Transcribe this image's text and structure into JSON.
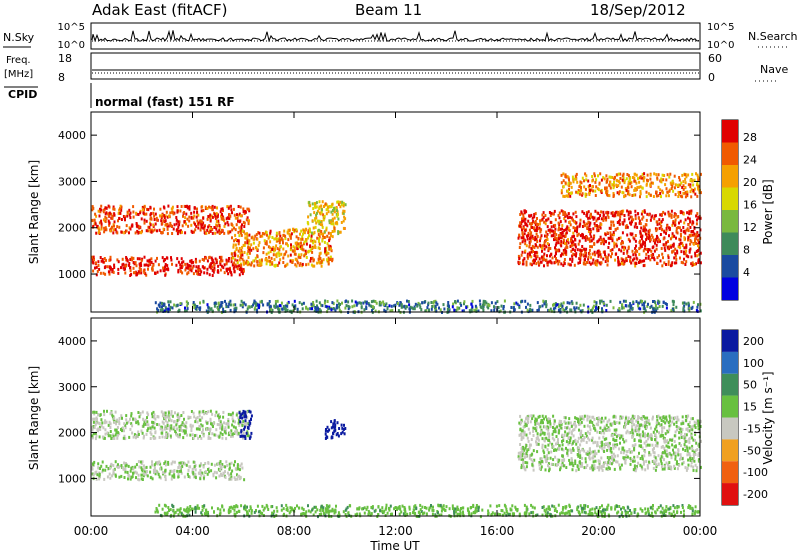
{
  "header": {
    "station": "Adak East (fitACF)",
    "beam": "Beam 11",
    "date": "18/Sep/2012"
  },
  "aux": {
    "nsky_label": "N.Sky",
    "nsky_ticks": [
      "10^5",
      "10^0"
    ],
    "nsearch_label": "N.Search",
    "nsearch_ticks": [
      "10^5",
      "10^0"
    ],
    "freq_label": "Freq.",
    "freq_unit": "[MHz]",
    "freq_ticks": [
      "18",
      "8"
    ],
    "nave_label": "Nave",
    "nave_ticks": [
      "60",
      "0"
    ],
    "cpid_label": "CPID",
    "cpid_text": "normal (fast) 151 RF"
  },
  "panels": {
    "power": {
      "ylabel": "Slant Range [km]",
      "yticks": [
        "4000",
        "3000",
        "2000",
        "1000"
      ],
      "colorbar_label": "Power [dB]",
      "colorbar_ticks": [
        "28",
        "24",
        "20",
        "16",
        "12",
        "8",
        "4"
      ],
      "colors": [
        "#e00000",
        "#f05a00",
        "#f5a000",
        "#d8d800",
        "#7ab840",
        "#3e8a5a",
        "#1a4aa0",
        "#0000e0"
      ]
    },
    "velocity": {
      "ylabel": "Slant Range [km]",
      "yticks": [
        "4000",
        "3000",
        "2000",
        "1000"
      ],
      "colorbar_label": "Velocity [m s⁻¹]",
      "colorbar_ticks": [
        "200",
        "100",
        "50",
        "15",
        "-15",
        "-50",
        "-100",
        "-200"
      ],
      "colors": [
        "#0a1aa0",
        "#2a6ec0",
        "#3f8e5a",
        "#68c040",
        "#c8c8c0",
        "#f0a020",
        "#f06010",
        "#e01010"
      ]
    }
  },
  "xaxis": {
    "label": "Time UT",
    "ticks": [
      "00:00",
      "04:00",
      "08:00",
      "12:00",
      "16:00",
      "20:00",
      "00:00"
    ]
  },
  "chart_data": [
    {
      "type": "heatmap",
      "name": "Power",
      "x_unit": "hours UT",
      "y_unit": "km",
      "xlim": [
        0,
        24
      ],
      "ylim": [
        180,
        4500
      ],
      "clim": [
        0,
        30
      ],
      "regions": [
        {
          "t0": 0.0,
          "t1": 6.0,
          "r0": 1000,
          "r1": 1400,
          "value": 28
        },
        {
          "t0": 0.0,
          "t1": 6.2,
          "r0": 1900,
          "r1": 2500,
          "value": 26
        },
        {
          "t0": 5.5,
          "t1": 9.5,
          "r0": 1200,
          "r1": 2000,
          "value": 22
        },
        {
          "t0": 8.5,
          "t1": 10.0,
          "r0": 1900,
          "r1": 2600,
          "value": 18
        },
        {
          "t0": 16.8,
          "t1": 24.0,
          "r0": 1200,
          "r1": 2400,
          "value": 27
        },
        {
          "t0": 18.5,
          "t1": 24.0,
          "r0": 2700,
          "r1": 3200,
          "value": 22
        },
        {
          "t0": 2.5,
          "t1": 24.0,
          "r0": 200,
          "r1": 450,
          "value": 8
        }
      ]
    },
    {
      "type": "heatmap",
      "name": "Velocity",
      "x_unit": "hours UT",
      "y_unit": "km",
      "xlim": [
        0,
        24
      ],
      "ylim": [
        180,
        4500
      ],
      "clim": [
        -200,
        200
      ],
      "regions": [
        {
          "t0": 0.0,
          "t1": 6.0,
          "r0": 1000,
          "r1": 1400,
          "value": 0
        },
        {
          "t0": 0.0,
          "t1": 6.2,
          "r0": 1900,
          "r1": 2500,
          "value": -5
        },
        {
          "t0": 5.8,
          "t1": 6.3,
          "r0": 1900,
          "r1": 2500,
          "value": 200
        },
        {
          "t0": 9.2,
          "t1": 10.0,
          "r0": 1900,
          "r1": 2300,
          "value": 200
        },
        {
          "t0": 16.8,
          "t1": 24.0,
          "r0": 1200,
          "r1": 2400,
          "value": 0
        },
        {
          "t0": 2.5,
          "t1": 24.0,
          "r0": 200,
          "r1": 450,
          "value": 30
        }
      ]
    }
  ]
}
